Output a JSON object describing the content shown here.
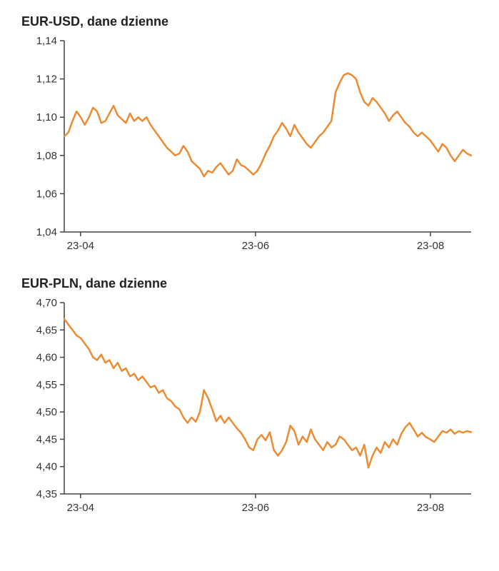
{
  "charts": [
    {
      "id": "eur-usd",
      "title": "EUR-USD, dane dzienne",
      "type": "line",
      "line_color": "#ec8b32",
      "axis_color": "#444444",
      "tick_label_fontsize": 15,
      "title_fontsize": 18,
      "line_width": 2.5,
      "background_color": "#ffffff",
      "x": {
        "min": 0,
        "max": 100,
        "ticks": [
          4,
          47,
          90
        ],
        "tick_labels": [
          "23-04",
          "23-06",
          "23-08"
        ]
      },
      "y": {
        "min": 1.04,
        "max": 1.14,
        "ticks": [
          1.04,
          1.06,
          1.08,
          1.1,
          1.12,
          1.14
        ],
        "tick_labels": [
          "1,04",
          "1,06",
          "1,08",
          "1,10",
          "1,12",
          "1,14"
        ],
        "decimal_sep": ","
      },
      "data": [
        1.09,
        1.092,
        1.098,
        1.103,
        1.1,
        1.096,
        1.1,
        1.105,
        1.103,
        1.097,
        1.098,
        1.102,
        1.106,
        1.101,
        1.099,
        1.097,
        1.102,
        1.098,
        1.1,
        1.098,
        1.1,
        1.096,
        1.093,
        1.09,
        1.087,
        1.084,
        1.082,
        1.08,
        1.081,
        1.085,
        1.082,
        1.077,
        1.075,
        1.073,
        1.069,
        1.072,
        1.071,
        1.074,
        1.076,
        1.073,
        1.07,
        1.072,
        1.078,
        1.075,
        1.074,
        1.072,
        1.07,
        1.072,
        1.076,
        1.081,
        1.085,
        1.09,
        1.093,
        1.097,
        1.094,
        1.09,
        1.096,
        1.092,
        1.089,
        1.086,
        1.084,
        1.087,
        1.09,
        1.092,
        1.095,
        1.098,
        1.113,
        1.118,
        1.122,
        1.123,
        1.122,
        1.12,
        1.113,
        1.108,
        1.106,
        1.11,
        1.108,
        1.105,
        1.102,
        1.098,
        1.101,
        1.103,
        1.1,
        1.097,
        1.095,
        1.092,
        1.09,
        1.092,
        1.09,
        1.088,
        1.085,
        1.082,
        1.086,
        1.084,
        1.08,
        1.077,
        1.08,
        1.083,
        1.081,
        1.08
      ]
    },
    {
      "id": "eur-pln",
      "title": "EUR-PLN, dane dzienne",
      "type": "line",
      "line_color": "#ec8b32",
      "axis_color": "#444444",
      "tick_label_fontsize": 15,
      "title_fontsize": 18,
      "line_width": 2.5,
      "background_color": "#ffffff",
      "x": {
        "min": 0,
        "max": 100,
        "ticks": [
          4,
          47,
          90
        ],
        "tick_labels": [
          "23-04",
          "23-06",
          "23-08"
        ]
      },
      "y": {
        "min": 4.35,
        "max": 4.7,
        "ticks": [
          4.35,
          4.4,
          4.45,
          4.5,
          4.55,
          4.6,
          4.65,
          4.7
        ],
        "tick_labels": [
          "4,35",
          "4,40",
          "4,45",
          "4,50",
          "4,55",
          "4,60",
          "4,65",
          "4,70"
        ],
        "decimal_sep": ","
      },
      "data": [
        4.67,
        4.66,
        4.65,
        4.64,
        4.635,
        4.625,
        4.615,
        4.6,
        4.595,
        4.605,
        4.59,
        4.595,
        4.58,
        4.59,
        4.575,
        4.58,
        4.565,
        4.57,
        4.558,
        4.565,
        4.555,
        4.545,
        4.548,
        4.535,
        4.54,
        4.525,
        4.52,
        4.51,
        4.505,
        4.49,
        4.48,
        4.49,
        4.482,
        4.5,
        4.54,
        4.525,
        4.505,
        4.483,
        4.493,
        4.48,
        4.49,
        4.48,
        4.47,
        4.462,
        4.45,
        4.435,
        4.43,
        4.45,
        4.458,
        4.448,
        4.463,
        4.43,
        4.42,
        4.43,
        4.445,
        4.475,
        4.465,
        4.44,
        4.455,
        4.445,
        4.468,
        4.45,
        4.44,
        4.43,
        4.445,
        4.435,
        4.44,
        4.455,
        4.45,
        4.44,
        4.43,
        4.435,
        4.42,
        4.44,
        4.398,
        4.42,
        4.435,
        4.425,
        4.445,
        4.435,
        4.45,
        4.44,
        4.46,
        4.472,
        4.48,
        4.468,
        4.455,
        4.462,
        4.454,
        4.45,
        4.445,
        4.455,
        4.465,
        4.462,
        4.468,
        4.46,
        4.465,
        4.462,
        4.465,
        4.463
      ]
    }
  ]
}
